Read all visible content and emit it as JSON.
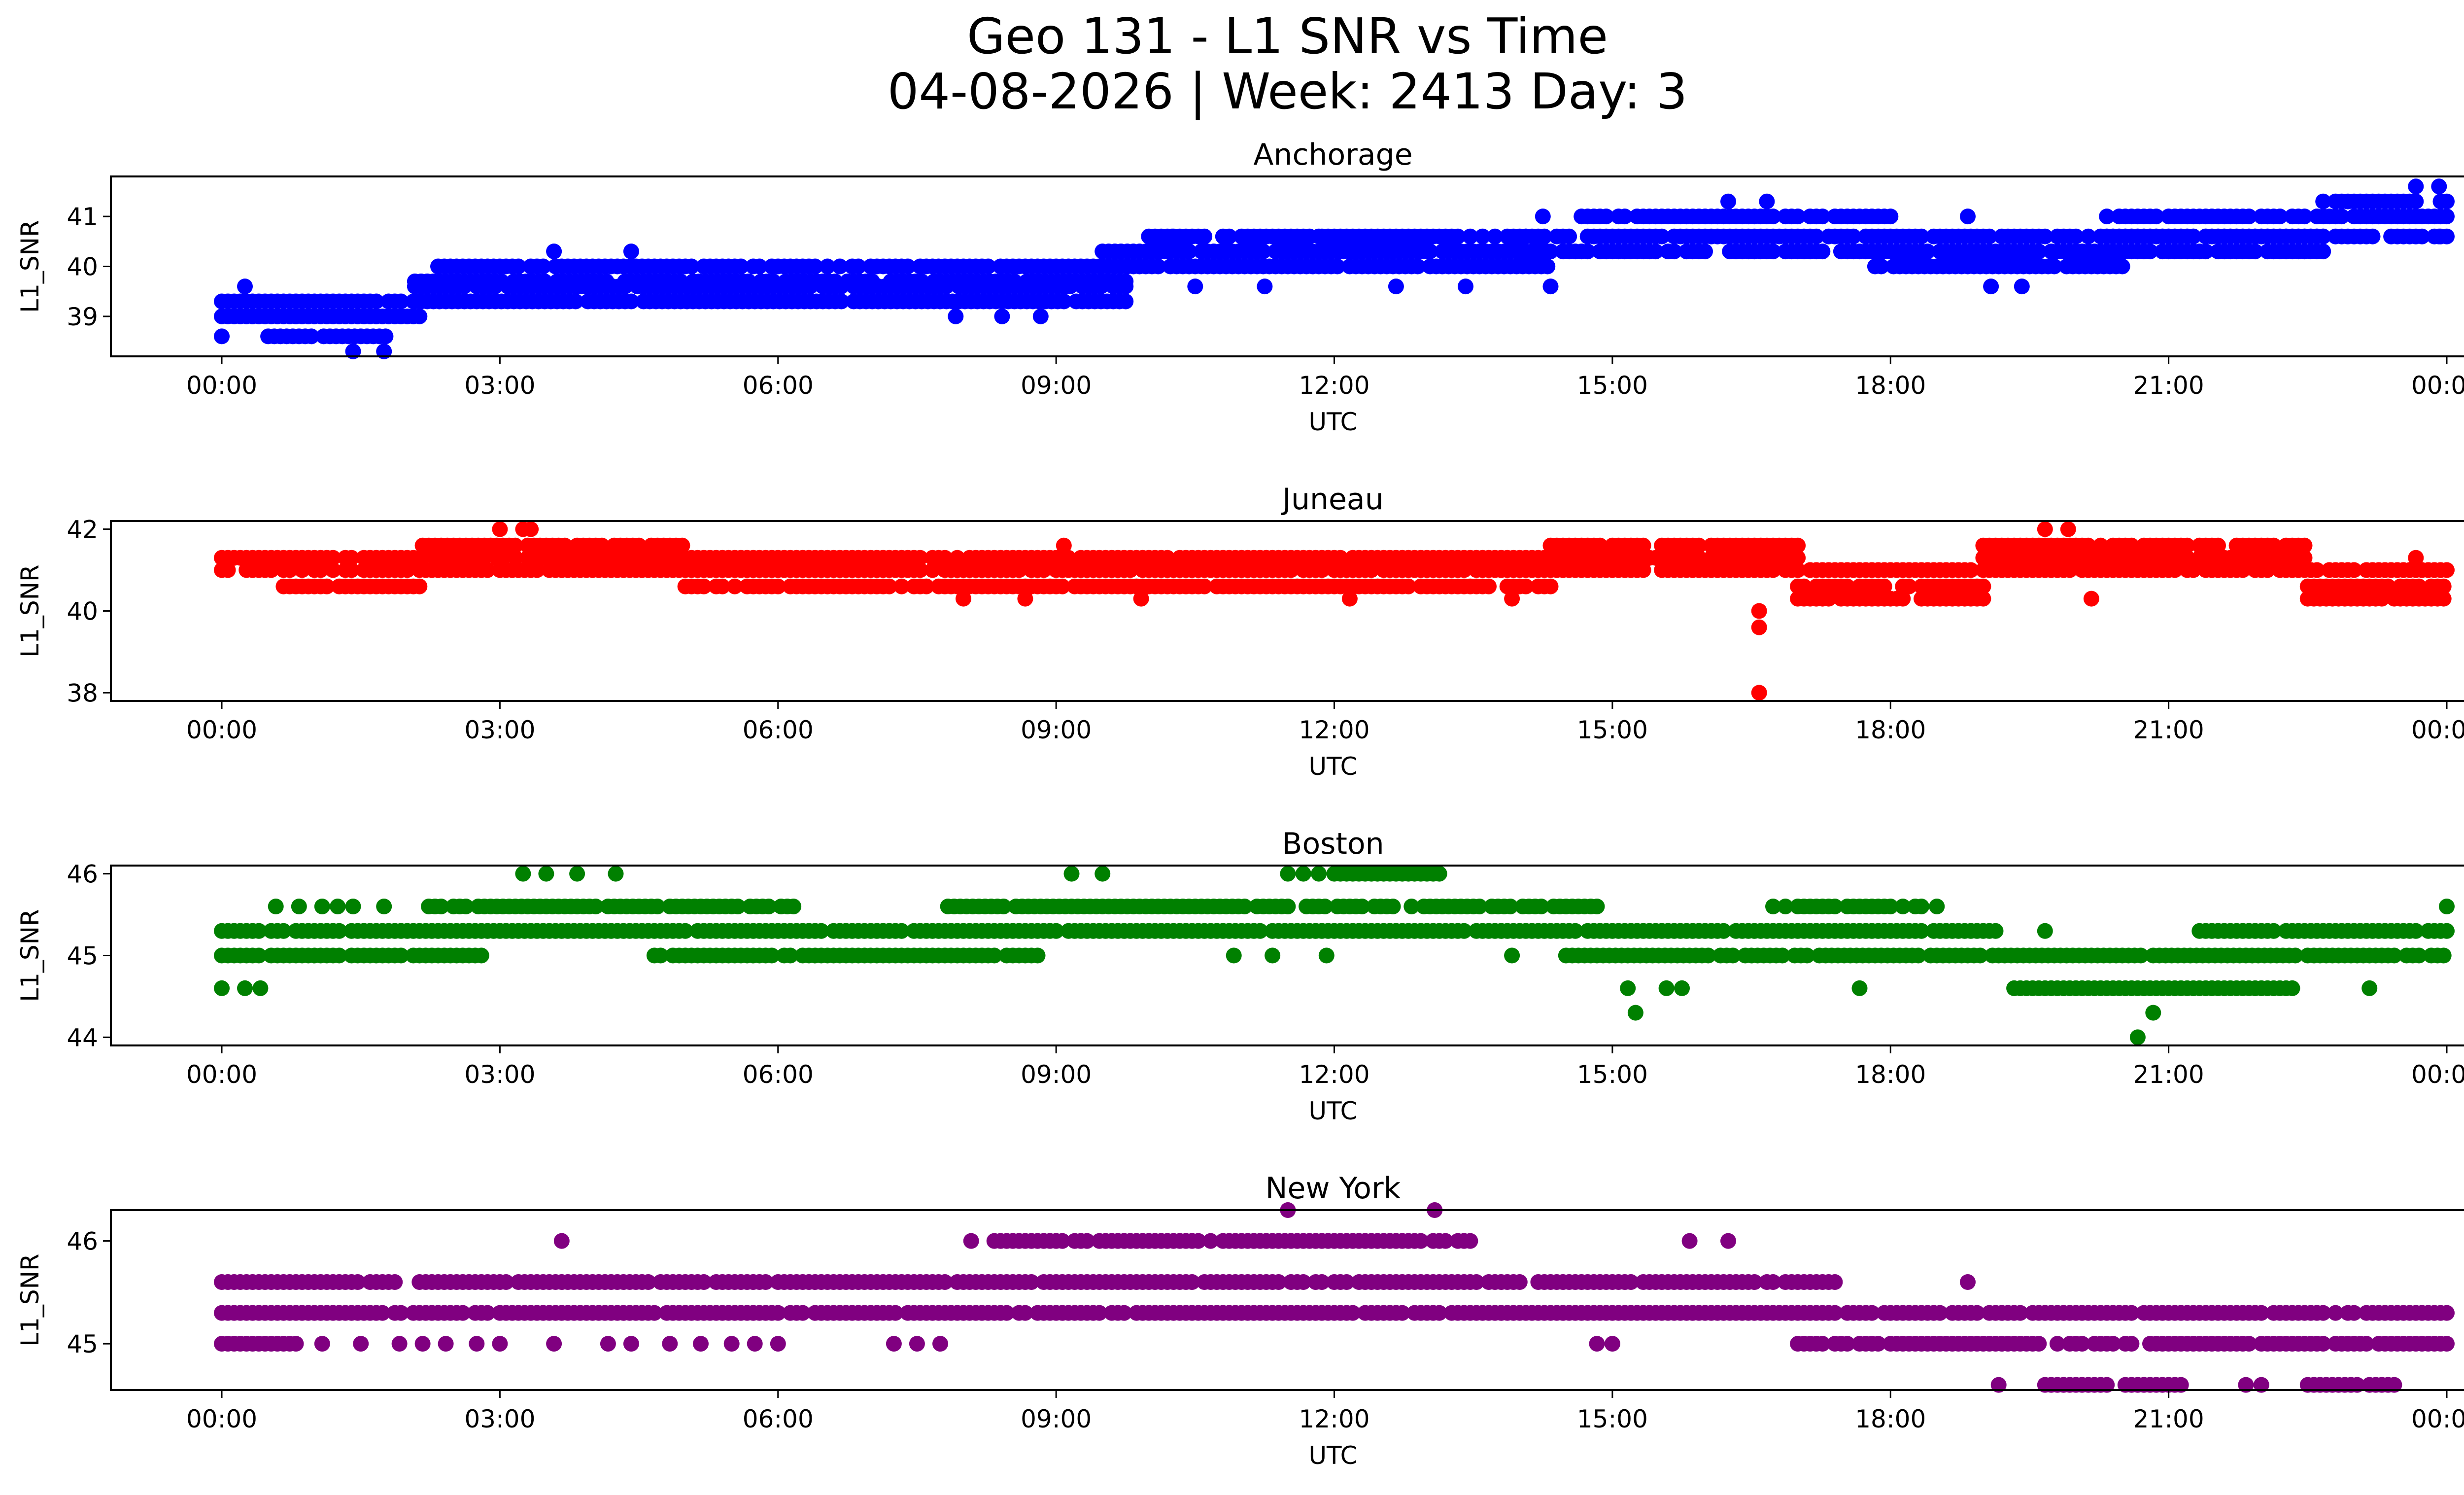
{
  "figure": {
    "title_line1": "Geo 131 - L1 SNR vs Time",
    "title_line2": "04-08-2026 | Week: 2413 Day: 3"
  },
  "chart_data": [
    {
      "type": "scatter",
      "title": "Anchorage",
      "xlabel": "UTC",
      "ylabel": "L1_SNR",
      "color": "#0000ff",
      "xlim": [
        "00:00",
        "24:00"
      ],
      "ylim": [
        38.2,
        41.8
      ],
      "xticks": [
        "00:00",
        "03:00",
        "06:00",
        "09:00",
        "12:00",
        "15:00",
        "18:00",
        "21:00",
        "00:00"
      ],
      "yticks": [
        39,
        40,
        41
      ],
      "grid": false,
      "series": [
        {
          "dense_bands": [
            {
              "from": "00:00",
              "to": "02:10",
              "y": [
                39.0,
                39.3
              ]
            },
            {
              "from": "00:30",
              "to": "01:50",
              "y": [
                38.6
              ]
            },
            {
              "from": "02:05",
              "to": "09:45",
              "y": [
                39.3,
                39.6,
                39.7
              ]
            },
            {
              "from": "02:20",
              "to": "09:30",
              "y": [
                40.0
              ]
            },
            {
              "from": "09:30",
              "to": "14:20",
              "y": [
                40.0,
                40.3
              ]
            },
            {
              "from": "10:00",
              "to": "14:10",
              "y": [
                40.6
              ]
            },
            {
              "from": "14:00",
              "to": "22:40",
              "y": [
                40.3,
                40.6
              ]
            },
            {
              "from": "14:40",
              "to": "18:00",
              "y": [
                41.0
              ]
            },
            {
              "from": "17:50",
              "to": "20:30",
              "y": [
                40.0
              ]
            },
            {
              "from": "20:20",
              "to": "24:00",
              "y": [
                40.6,
                41.0
              ]
            },
            {
              "from": "22:40",
              "to": "24:00",
              "y": [
                41.3
              ]
            }
          ],
          "points": [
            [
              "00:00",
              38.6
            ],
            [
              "00:15",
              39.6
            ],
            [
              "01:25",
              38.3
            ],
            [
              "01:45",
              38.3
            ],
            [
              "03:35",
              40.3
            ],
            [
              "04:25",
              40.3
            ],
            [
              "07:55",
              39.0
            ],
            [
              "08:25",
              39.0
            ],
            [
              "08:50",
              39.0
            ],
            [
              "10:15",
              40.6
            ],
            [
              "10:30",
              39.6
            ],
            [
              "11:15",
              39.6
            ],
            [
              "11:50",
              40.6
            ],
            [
              "12:40",
              39.6
            ],
            [
              "13:25",
              39.6
            ],
            [
              "14:15",
              41.0
            ],
            [
              "14:20",
              39.6
            ],
            [
              "16:15",
              41.3
            ],
            [
              "16:40",
              41.3
            ],
            [
              "18:50",
              41.0
            ],
            [
              "19:05",
              39.6
            ],
            [
              "19:25",
              39.6
            ],
            [
              "23:40",
              41.6
            ],
            [
              "23:55",
              41.6
            ],
            [
              "23:55",
              40.6
            ]
          ]
        }
      ]
    },
    {
      "type": "scatter",
      "title": "Juneau",
      "xlabel": "UTC",
      "ylabel": "L1_SNR",
      "color": "#ff0000",
      "xlim": [
        "00:00",
        "24:00"
      ],
      "ylim": [
        37.8,
        42.2
      ],
      "xticks": [
        "00:00",
        "03:00",
        "06:00",
        "09:00",
        "12:00",
        "15:00",
        "18:00",
        "21:00",
        "00:00"
      ],
      "yticks": [
        38,
        40,
        42
      ],
      "grid": false,
      "series": [
        {
          "dense_bands": [
            {
              "from": "00:00",
              "to": "24:00",
              "y": [
                41.0
              ]
            },
            {
              "from": "00:00",
              "to": "02:10",
              "y": [
                41.3
              ]
            },
            {
              "from": "00:40",
              "to": "02:10",
              "y": [
                40.6
              ]
            },
            {
              "from": "02:10",
              "to": "05:00",
              "y": [
                41.3,
                41.6
              ]
            },
            {
              "from": "05:00",
              "to": "14:20",
              "y": [
                40.6,
                41.3
              ]
            },
            {
              "from": "14:20",
              "to": "17:00",
              "y": [
                41.3,
                41.6
              ]
            },
            {
              "from": "17:00",
              "to": "19:00",
              "y": [
                40.3,
                40.6
              ]
            },
            {
              "from": "19:00",
              "to": "22:30",
              "y": [
                41.3,
                41.6
              ]
            },
            {
              "from": "22:30",
              "to": "24:00",
              "y": [
                40.3,
                40.6
              ]
            }
          ],
          "points": [
            [
              "03:00",
              42.0
            ],
            [
              "03:15",
              42.0
            ],
            [
              "03:20",
              42.0
            ],
            [
              "08:00",
              40.3
            ],
            [
              "08:40",
              40.3
            ],
            [
              "09:05",
              41.6
            ],
            [
              "09:55",
              40.3
            ],
            [
              "12:10",
              40.3
            ],
            [
              "13:55",
              40.3
            ],
            [
              "16:35",
              40.0
            ],
            [
              "16:35",
              39.6
            ],
            [
              "16:35",
              38.0
            ],
            [
              "19:40",
              42.0
            ],
            [
              "19:55",
              42.0
            ],
            [
              "20:10",
              40.3
            ],
            [
              "23:40",
              41.3
            ]
          ]
        }
      ]
    },
    {
      "type": "scatter",
      "title": "Boston",
      "xlabel": "UTC",
      "ylabel": "L1_SNR",
      "color": "#008000",
      "xlim": [
        "00:00",
        "24:00"
      ],
      "ylim": [
        43.9,
        46.1
      ],
      "xticks": [
        "00:00",
        "03:00",
        "06:00",
        "09:00",
        "12:00",
        "15:00",
        "18:00",
        "21:00",
        "00:00"
      ],
      "yticks": [
        44,
        45,
        46
      ],
      "grid": false,
      "series": [
        {
          "dense_bands": [
            {
              "from": "00:00",
              "to": "19:10",
              "y": [
                45.3
              ]
            },
            {
              "from": "00:00",
              "to": "02:50",
              "y": [
                45.0
              ]
            },
            {
              "from": "02:10",
              "to": "06:10",
              "y": [
                45.6
              ]
            },
            {
              "from": "04:40",
              "to": "08:50",
              "y": [
                45.0
              ]
            },
            {
              "from": "07:50",
              "to": "14:50",
              "y": [
                45.6
              ]
            },
            {
              "from": "12:00",
              "to": "13:10",
              "y": [
                46.0
              ]
            },
            {
              "from": "14:30",
              "to": "24:00",
              "y": [
                45.0
              ]
            },
            {
              "from": "16:40",
              "to": "18:30",
              "y": [
                45.6
              ]
            },
            {
              "from": "19:20",
              "to": "22:20",
              "y": [
                44.6
              ]
            },
            {
              "from": "21:20",
              "to": "24:00",
              "y": [
                45.3
              ]
            }
          ],
          "points": [
            [
              "00:00",
              44.6
            ],
            [
              "00:15",
              44.6
            ],
            [
              "00:25",
              44.6
            ],
            [
              "00:35",
              45.6
            ],
            [
              "00:50",
              45.6
            ],
            [
              "01:05",
              45.6
            ],
            [
              "01:15",
              45.6
            ],
            [
              "01:25",
              45.6
            ],
            [
              "01:45",
              45.6
            ],
            [
              "03:15",
              46.0
            ],
            [
              "03:30",
              46.0
            ],
            [
              "03:50",
              46.0
            ],
            [
              "04:15",
              46.0
            ],
            [
              "09:10",
              46.0
            ],
            [
              "09:30",
              46.0
            ],
            [
              "11:30",
              46.0
            ],
            [
              "11:40",
              46.0
            ],
            [
              "11:50",
              46.0
            ],
            [
              "10:55",
              45.0
            ],
            [
              "11:20",
              45.0
            ],
            [
              "11:55",
              45.0
            ],
            [
              "13:55",
              45.0
            ],
            [
              "15:10",
              44.6
            ],
            [
              "15:15",
              44.3
            ],
            [
              "15:35",
              44.6
            ],
            [
              "15:45",
              44.6
            ],
            [
              "17:40",
              44.6
            ],
            [
              "18:30",
              45.6
            ],
            [
              "19:40",
              45.3
            ],
            [
              "20:40",
              44.0
            ],
            [
              "20:50",
              44.3
            ],
            [
              "23:10",
              44.6
            ],
            [
              "24:00",
              45.6
            ]
          ]
        }
      ]
    },
    {
      "type": "scatter",
      "title": "New York",
      "xlabel": "UTC",
      "ylabel": "L1_SNR",
      "color": "#800080",
      "xlim": [
        "00:00",
        "24:00"
      ],
      "ylim": [
        44.55,
        46.3
      ],
      "xticks": [
        "00:00",
        "03:00",
        "06:00",
        "09:00",
        "12:00",
        "15:00",
        "18:00",
        "21:00",
        "00:00"
      ],
      "yticks": [
        45,
        46
      ],
      "grid": false,
      "series": [
        {
          "dense_bands": [
            {
              "from": "00:00",
              "to": "24:00",
              "y": [
                45.3
              ]
            },
            {
              "from": "00:00",
              "to": "17:30",
              "y": [
                45.6
              ]
            },
            {
              "from": "00:00",
              "to": "00:50",
              "y": [
                45.0
              ]
            },
            {
              "from": "08:20",
              "to": "13:30",
              "y": [
                46.0
              ]
            },
            {
              "from": "17:00",
              "to": "24:00",
              "y": [
                45.0
              ]
            },
            {
              "from": "19:40",
              "to": "21:10",
              "y": [
                44.6
              ]
            },
            {
              "from": "22:30",
              "to": "23:30",
              "y": [
                44.6
              ]
            }
          ],
          "points": [
            [
              "01:05",
              45.0
            ],
            [
              "01:30",
              45.0
            ],
            [
              "01:55",
              45.0
            ],
            [
              "02:10",
              45.0
            ],
            [
              "02:25",
              45.0
            ],
            [
              "02:45",
              45.0
            ],
            [
              "03:00",
              45.0
            ],
            [
              "03:40",
              46.0
            ],
            [
              "03:35",
              45.0
            ],
            [
              "04:10",
              45.0
            ],
            [
              "04:25",
              45.0
            ],
            [
              "04:50",
              45.0
            ],
            [
              "05:10",
              45.0
            ],
            [
              "05:30",
              45.0
            ],
            [
              "05:45",
              45.0
            ],
            [
              "06:00",
              45.0
            ],
            [
              "07:15",
              45.0
            ],
            [
              "07:30",
              45.0
            ],
            [
              "07:45",
              45.0
            ],
            [
              "08:05",
              46.0
            ],
            [
              "11:30",
              46.3
            ],
            [
              "13:05",
              46.3
            ],
            [
              "14:50",
              45.0
            ],
            [
              "15:00",
              45.0
            ],
            [
              "15:50",
              46.0
            ],
            [
              "16:15",
              46.0
            ],
            [
              "18:50",
              45.6
            ],
            [
              "19:10",
              44.6
            ],
            [
              "21:50",
              44.6
            ],
            [
              "22:00",
              44.6
            ]
          ]
        }
      ]
    }
  ]
}
